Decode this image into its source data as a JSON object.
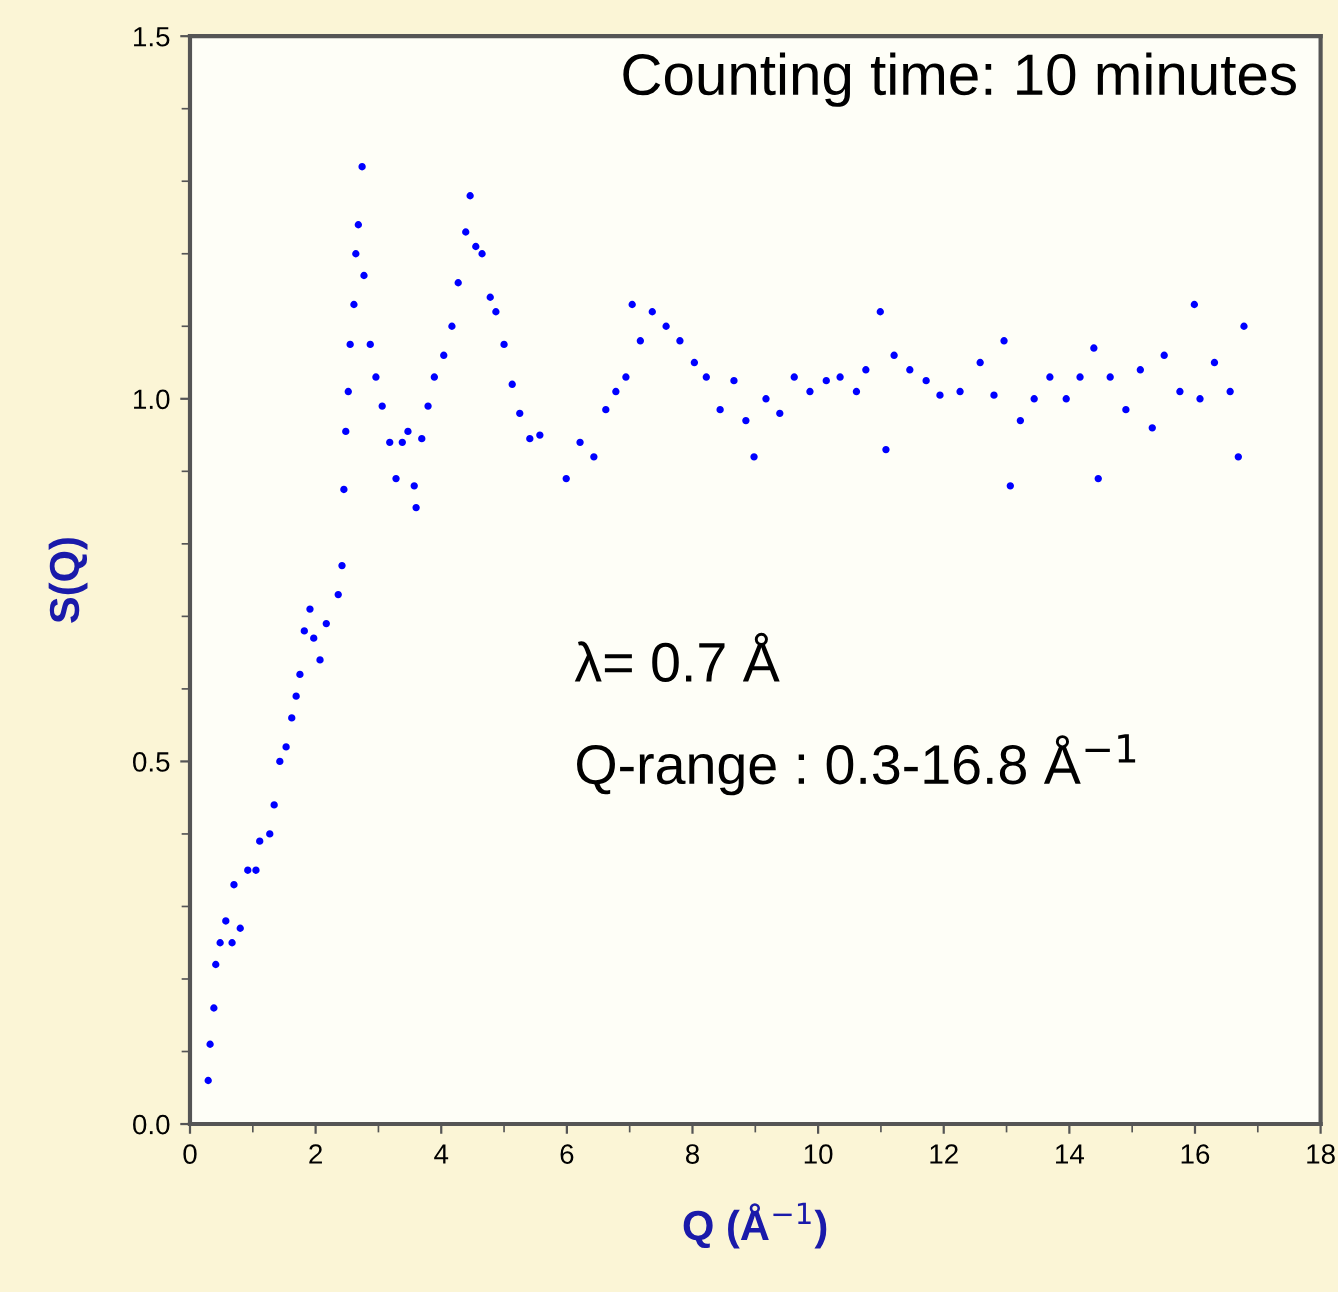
{
  "chart_data": {
    "type": "scatter",
    "xlabel": "Q (Å$^{−1}$)",
    "ylabel": "S(Q)",
    "annotations": [
      "Counting time: 10 minutes",
      "λ= 0.7 Å",
      "Q-range : 0.3-16.8 Å$^{−1}$"
    ],
    "xlim": [
      0,
      18
    ],
    "xticks": [
      0,
      2,
      4,
      6,
      8,
      10,
      12,
      14,
      16,
      18
    ],
    "ylim": [
      0,
      1.5
    ],
    "yticks": [
      {
        "value": 0,
        "label": "0.0"
      },
      0.5,
      {
        "value": 1,
        "label": "1.0"
      },
      1.5
    ],
    "grid": false,
    "legend": false,
    "marker": "circle",
    "series": [
      {
        "color": "#0000ff",
        "x": [
          0.29,
          0.32,
          0.38,
          0.41,
          0.48,
          0.57,
          0.67,
          0.7,
          0.8,
          0.92,
          1.05,
          1.11,
          1.27,
          1.34,
          1.43,
          1.53,
          1.62,
          1.69,
          1.75,
          1.82,
          1.91,
          1.97,
          2.07,
          2.17,
          2.36,
          2.42,
          2.45,
          2.48,
          2.52,
          2.55,
          2.61,
          2.64,
          2.68,
          2.74,
          2.77,
          2.87,
          2.96,
          3.06,
          3.18,
          3.28,
          3.38,
          3.47,
          3.57,
          3.6,
          3.69,
          3.79,
          3.89,
          4.04,
          4.17,
          4.27,
          4.39,
          4.46,
          4.55,
          4.65,
          4.78,
          4.87,
          5.0,
          5.13,
          5.25,
          5.41,
          5.57,
          5.99,
          6.21,
          6.43,
          6.62,
          6.78,
          6.94,
          7.04,
          7.17,
          7.36,
          7.58,
          7.8,
          8.03,
          8.22,
          8.44,
          8.66,
          8.85,
          8.98,
          9.17,
          9.39,
          9.62,
          9.87,
          10.13,
          10.35,
          10.61,
          10.76,
          10.99,
          11.08,
          11.21,
          11.46,
          11.72,
          11.94,
          12.26,
          12.58,
          12.8,
          12.96,
          13.06,
          13.22,
          13.44,
          13.69,
          13.95,
          14.17,
          14.39,
          14.46,
          14.65,
          14.9,
          15.13,
          15.32,
          15.51,
          15.76,
          15.99,
          16.08,
          16.31,
          16.56,
          16.69,
          16.78
        ],
        "values": [
          0.06,
          0.11,
          0.16,
          0.22,
          0.25,
          0.28,
          0.25,
          0.33,
          0.27,
          0.35,
          0.35,
          0.39,
          0.4,
          0.44,
          0.5,
          0.52,
          0.56,
          0.59,
          0.62,
          0.68,
          0.71,
          0.67,
          0.64,
          0.69,
          0.73,
          0.77,
          0.875,
          0.955,
          1.01,
          1.075,
          1.13,
          1.2,
          1.24,
          1.32,
          1.17,
          1.075,
          1.03,
          0.99,
          0.94,
          0.89,
          0.94,
          0.955,
          0.88,
          0.85,
          0.945,
          0.99,
          1.03,
          1.06,
          1.1,
          1.16,
          1.23,
          1.28,
          1.21,
          1.2,
          1.14,
          1.12,
          1.075,
          1.02,
          0.98,
          0.945,
          0.95,
          0.89,
          0.94,
          0.92,
          0.985,
          1.01,
          1.03,
          1.13,
          1.08,
          1.12,
          1.1,
          1.08,
          1.05,
          1.03,
          0.985,
          1.025,
          0.97,
          0.92,
          1.0,
          0.98,
          1.03,
          1.01,
          1.025,
          1.03,
          1.01,
          1.04,
          1.12,
          0.93,
          1.06,
          1.04,
          1.025,
          1.005,
          1.01,
          1.05,
          1.005,
          1.08,
          0.88,
          0.97,
          1.0,
          1.03,
          1.0,
          1.03,
          1.07,
          0.89,
          1.03,
          0.985,
          1.04,
          0.96,
          1.06,
          1.01,
          1.13,
          1.0,
          1.05,
          1.01,
          0.92,
          1.1
        ]
      }
    ]
  }
}
